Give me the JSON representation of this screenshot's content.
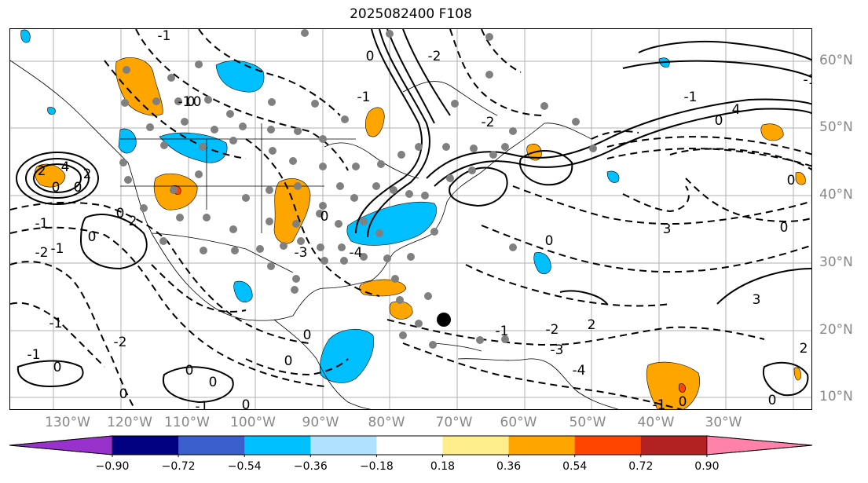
{
  "title": "2025082400 F108",
  "lon_labels": [
    "130°W",
    "120°W",
    "110°W",
    "100°W",
    "90°W",
    "80°W",
    "70°W",
    "60°W",
    "50°W",
    "40°W",
    "30°W"
  ],
  "lat_labels": [
    "60°N",
    "50°N",
    "40°N",
    "30°N",
    "20°N",
    "10°N"
  ],
  "colorbar": {
    "colors": [
      "#9932cc",
      "#000080",
      "#3a5fcd",
      "#00bfff",
      "#b0e2ff",
      "#ffffff",
      "#ffec8b",
      "#ffa500",
      "#ff4500",
      "#b22222",
      "#ff82ab"
    ],
    "tick_labels": [
      "−0.90",
      "−0.72",
      "−0.54",
      "−0.36",
      "−0.18",
      "0.18",
      "0.36",
      "0.54",
      "0.72",
      "0.90"
    ]
  },
  "contour_labels": [
    "-1",
    "0",
    "0",
    "2",
    "4",
    "2",
    "0",
    "-1",
    "0",
    "-2",
    "2",
    "0",
    "-1",
    "0",
    "-1",
    "0",
    "-1",
    "0",
    "-3",
    "-4",
    "-2",
    "-2",
    "-1",
    "0",
    "4",
    "3",
    "2",
    "2",
    "3",
    "0",
    "0",
    "0",
    "-1",
    "-2",
    "-3",
    "-4",
    "0",
    "-1",
    "0",
    "0",
    "0",
    "-1",
    "-2",
    "-1",
    "-1",
    "0",
    "0",
    "0",
    "0",
    "0",
    "-1"
  ],
  "colors": {
    "orange": "#ffa500",
    "blue": "#00bfff",
    "red": "#ff4500",
    "gray_dot": "#808080"
  }
}
